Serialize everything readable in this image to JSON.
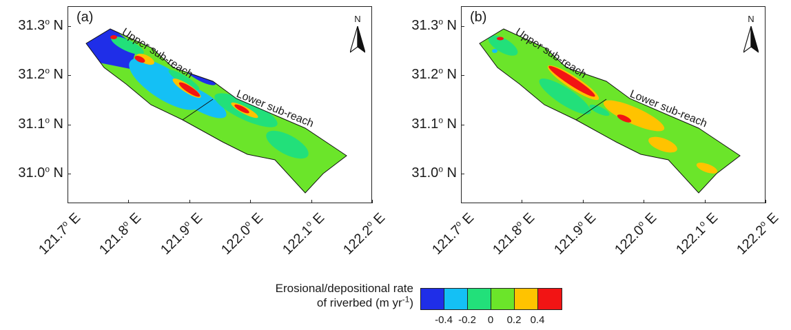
{
  "panels": [
    {
      "label": "(a)",
      "upper_label": "Upper sub-reach",
      "lower_label": "Lower sub-reach"
    },
    {
      "label": "(b)",
      "upper_label": "Upper sub-reach",
      "lower_label": "Lower sub-reach"
    }
  ],
  "north_arrow": {
    "text": "N",
    "icon": "north-arrow-icon"
  },
  "axes": {
    "y_ticks": [
      "31.3",
      "31.2",
      "31.1",
      "31.0"
    ],
    "y_suffix": " N",
    "x_ticks": [
      "121.7",
      "121.8",
      "121.9",
      "122.0",
      "122.1",
      "122.2"
    ],
    "x_suffix": " E",
    "degree_mark": "o",
    "lon_range": [
      121.7,
      122.2
    ],
    "lat_range": [
      30.94,
      31.34
    ]
  },
  "legend": {
    "title_line1": "Erosional/depositional rate",
    "title_line2_pre": "of riverbed (m yr",
    "title_line2_sup": "-1",
    "title_line2_post": ")",
    "colors": [
      "#1f2ee8",
      "#14c0f5",
      "#22e07a",
      "#6be52a",
      "#ffc300",
      "#f21414"
    ],
    "tick_labels": [
      "-0.4",
      "-0.2",
      "0",
      "0.2",
      "0.4"
    ]
  }
}
